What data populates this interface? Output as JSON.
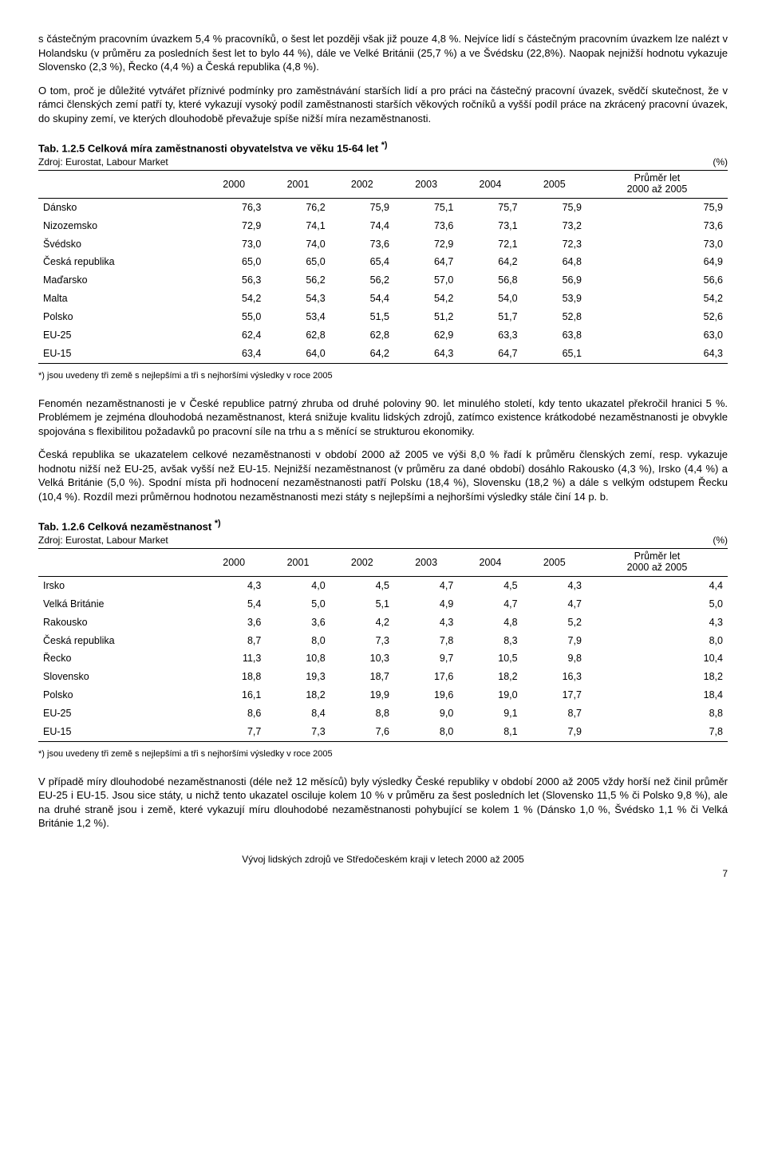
{
  "para1": "s částečným pracovním úvazkem 5,4 % pracovníků, o šest let později však již pouze 4,8 %. Nejvíce lidí s částečným pracovním úvazkem lze nalézt v Holandsku (v průměru za posledních šest let to bylo 44 %), dále ve Velké Británii (25,7 %) a ve Švédsku (22,8%). Naopak nejnižší hodnotu vykazuje Slovensko (2,3 %), Řecko (4,4 %) a Česká republika (4,8 %).",
  "para2": "O tom, proč je důležité vytvářet příznivé podmínky pro zaměstnávání starších lidí a pro práci na částečný pracovní úvazek, svědčí skutečnost, že v rámci členských zemí patří ty, které vykazují vysoký podíl zaměstnanosti starších věkových ročníků a vyšší podíl práce na zkrácený pracovní úvazek, do skupiny zemí, ve kterých dlouhodobě převažuje spíše nižší míra nezaměstnanosti.",
  "table1": {
    "title_prefix": "Tab. 1.2.5 Celková míra zaměstnanosti obyvatelstva ve věku 15-64 let ",
    "title_sup": "*)",
    "source": "Zdroj: Eurostat, Labour Market",
    "unit": "(%)",
    "years": [
      "2000",
      "2001",
      "2002",
      "2003",
      "2004",
      "2005"
    ],
    "avg_label_line1": "Průměr let",
    "avg_label_line2": "2000 až 2005",
    "rows": [
      {
        "label": "Dánsko",
        "v": [
          "76,3",
          "76,2",
          "75,9",
          "75,1",
          "75,7",
          "75,9",
          "75,9"
        ]
      },
      {
        "label": "Nizozemsko",
        "v": [
          "72,9",
          "74,1",
          "74,4",
          "73,6",
          "73,1",
          "73,2",
          "73,6"
        ]
      },
      {
        "label": "Švédsko",
        "v": [
          "73,0",
          "74,0",
          "73,6",
          "72,9",
          "72,1",
          "72,3",
          "73,0"
        ]
      },
      {
        "label": "Česká republika",
        "v": [
          "65,0",
          "65,0",
          "65,4",
          "64,7",
          "64,2",
          "64,8",
          "64,9"
        ]
      },
      {
        "label": "Maďarsko",
        "v": [
          "56,3",
          "56,2",
          "56,2",
          "57,0",
          "56,8",
          "56,9",
          "56,6"
        ]
      },
      {
        "label": "Malta",
        "v": [
          "54,2",
          "54,3",
          "54,4",
          "54,2",
          "54,0",
          "53,9",
          "54,2"
        ]
      },
      {
        "label": "Polsko",
        "v": [
          "55,0",
          "53,4",
          "51,5",
          "51,2",
          "51,7",
          "52,8",
          "52,6"
        ]
      },
      {
        "label": "EU-25",
        "v": [
          "62,4",
          "62,8",
          "62,8",
          "62,9",
          "63,3",
          "63,8",
          "63,0"
        ]
      },
      {
        "label": "EU-15",
        "v": [
          "63,4",
          "64,0",
          "64,2",
          "64,3",
          "64,7",
          "65,1",
          "64,3"
        ]
      }
    ],
    "footnote": "*) jsou uvedeny tři země s nejlepšími a tři s nejhoršími výsledky v roce 2005"
  },
  "para3": "Fenomén nezaměstnanosti je v České republice patrný zhruba od druhé poloviny 90. let minulého století, kdy tento ukazatel překročil hranici 5 %. Problémem je zejména dlouhodobá nezaměstnanost, která snižuje kvalitu lidských zdrojů, zatímco existence krátkodobé nezaměstnanosti je obvykle spojována s flexibilitou požadavků po pracovní síle na trhu a s měnící se strukturou ekonomiky.",
  "para4": "Česká republika se ukazatelem celkové nezaměstnanosti v období 2000 až 2005 ve výši 8,0 % řadí k průměru členských zemí, resp. vykazuje hodnotu nižší než EU-25, avšak vyšší než EU-15. Nejnižší nezaměstnanost (v průměru za dané období) dosáhlo Rakousko (4,3 %), Irsko (4,4 %) a Velká Británie (5,0 %). Spodní místa při hodnocení nezaměstnanosti patří Polsku (18,4 %), Slovensku (18,2 %) a dále s velkým odstupem Řecku (10,4 %). Rozdíl mezi průměrnou hodnotou nezaměstnanosti mezi státy s nejlepšími a nejhoršími výsledky stále činí 14 p. b.",
  "table2": {
    "title_prefix": "Tab. 1.2.6 Celková nezaměstnanost ",
    "title_sup": "*)",
    "source": "Zdroj: Eurostat, Labour Market",
    "unit": "(%)",
    "years": [
      "2000",
      "2001",
      "2002",
      "2003",
      "2004",
      "2005"
    ],
    "avg_label_line1": "Průměr let",
    "avg_label_line2": "2000 až 2005",
    "rows": [
      {
        "label": "Irsko",
        "v": [
          "4,3",
          "4,0",
          "4,5",
          "4,7",
          "4,5",
          "4,3",
          "4,4"
        ]
      },
      {
        "label": "Velká Británie",
        "v": [
          "5,4",
          "5,0",
          "5,1",
          "4,9",
          "4,7",
          "4,7",
          "5,0"
        ]
      },
      {
        "label": "Rakousko",
        "v": [
          "3,6",
          "3,6",
          "4,2",
          "4,3",
          "4,8",
          "5,2",
          "4,3"
        ]
      },
      {
        "label": "Česká republika",
        "v": [
          "8,7",
          "8,0",
          "7,3",
          "7,8",
          "8,3",
          "7,9",
          "8,0"
        ]
      },
      {
        "label": "Řecko",
        "v": [
          "11,3",
          "10,8",
          "10,3",
          "9,7",
          "10,5",
          "9,8",
          "10,4"
        ]
      },
      {
        "label": "Slovensko",
        "v": [
          "18,8",
          "19,3",
          "18,7",
          "17,6",
          "18,2",
          "16,3",
          "18,2"
        ]
      },
      {
        "label": "Polsko",
        "v": [
          "16,1",
          "18,2",
          "19,9",
          "19,6",
          "19,0",
          "17,7",
          "18,4"
        ]
      },
      {
        "label": "EU-25",
        "v": [
          "8,6",
          "8,4",
          "8,8",
          "9,0",
          "9,1",
          "8,7",
          "8,8"
        ]
      },
      {
        "label": "EU-15",
        "v": [
          "7,7",
          "7,3",
          "7,6",
          "8,0",
          "8,1",
          "7,9",
          "7,8"
        ]
      }
    ],
    "footnote": "*) jsou uvedeny tři země s nejlepšími a tři s nejhoršími výsledky v roce 2005"
  },
  "para5": "V případě míry dlouhodobé nezaměstnanosti (déle než 12 měsíců) byly výsledky České republiky v období 2000 až 2005 vždy horší než činil průměr EU-25 i EU-15. Jsou sice státy, u nichž tento ukazatel osciluje kolem 10 % v průměru za šest posledních let (Slovensko 11,5 % či Polsko 9,8 %), ale na druhé straně jsou i země, které vykazují míru dlouhodobé nezaměstnanosti pohybující se kolem 1 % (Dánsko 1,0 %, Švédsko 1,1 % či Velká Británie 1,2 %).",
  "footer": "Vývoj lidských zdrojů ve Středočeském kraji v letech 2000 až 2005",
  "pagenum": "7"
}
